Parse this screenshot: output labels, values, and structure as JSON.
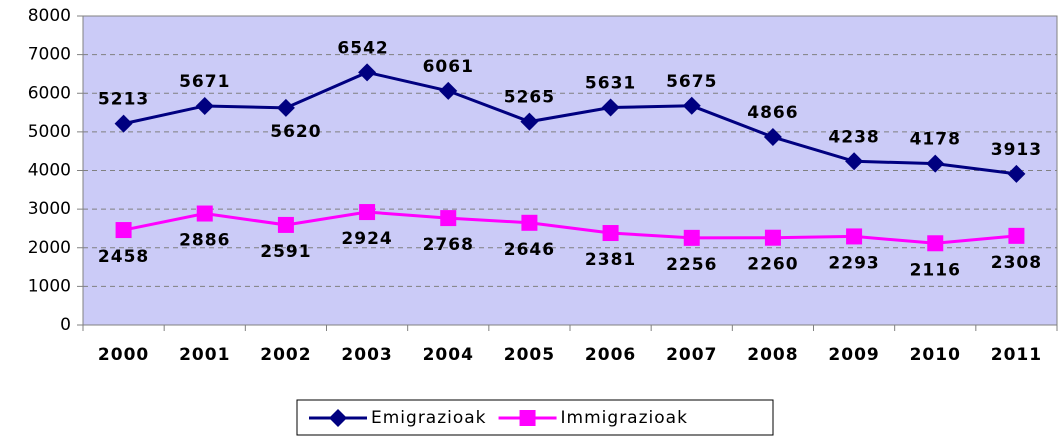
{
  "chart_data": {
    "type": "line",
    "categories": [
      "2000",
      "2001",
      "2002",
      "2003",
      "2004",
      "2005",
      "2006",
      "2007",
      "2008",
      "2009",
      "2010",
      "2011"
    ],
    "series": [
      {
        "name": "Emigrazioak",
        "color": "#000080",
        "marker": "diamond",
        "values": [
          5213,
          5671,
          5620,
          6542,
          6061,
          5265,
          5631,
          5675,
          4866,
          4238,
          4178,
          3913
        ]
      },
      {
        "name": "Immigrazioak",
        "color": "#ff00ff",
        "marker": "square",
        "values": [
          2458,
          2886,
          2591,
          2924,
          2768,
          2646,
          2381,
          2256,
          2260,
          2293,
          2116,
          2308
        ]
      }
    ],
    "ylim": [
      0,
      8000
    ],
    "yticks": [
      0,
      1000,
      2000,
      3000,
      4000,
      5000,
      6000,
      7000,
      8000
    ],
    "grid": true,
    "legend": "bottom"
  }
}
